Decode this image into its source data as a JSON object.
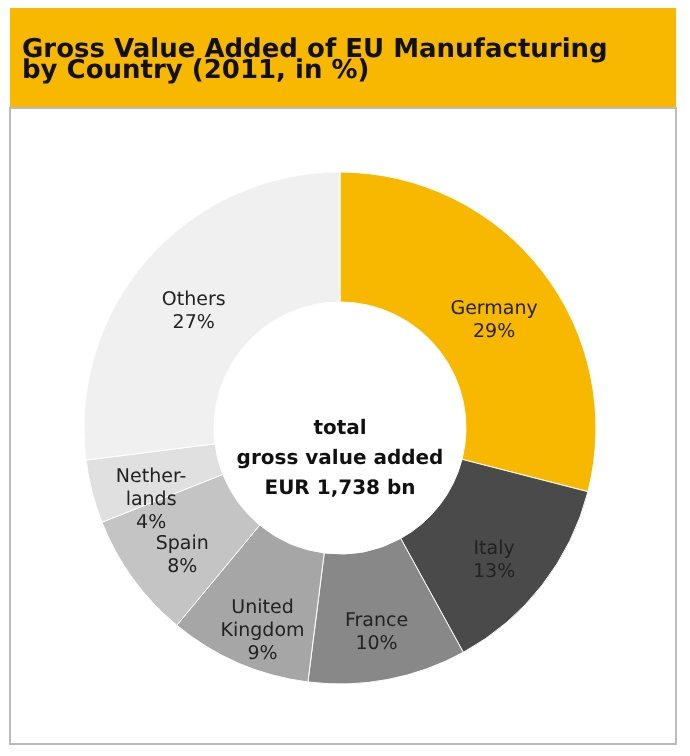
{
  "chart_data": {
    "type": "donut",
    "title": "Gross Value Added of EU Manufacturing\nby Country (2011, in %)",
    "categories": [
      "Germany",
      "Italy",
      "France",
      "United\nKingdom",
      "Spain",
      "Nether-\nlands",
      "Others"
    ],
    "values": [
      29,
      13,
      10,
      9,
      8,
      4,
      27
    ],
    "colors": [
      "#f8b800",
      "#4a4a4a",
      "#888888",
      "#a6a6a6",
      "#c4c4c4",
      "#e0e0e0",
      "#f0f0f0"
    ],
    "value_labels": [
      "29%",
      "13%",
      "10%",
      "9%",
      "8%",
      "4%",
      "27%"
    ],
    "annotations": [
      "total\ngross value added\nEUR 1,738 bn"
    ]
  }
}
